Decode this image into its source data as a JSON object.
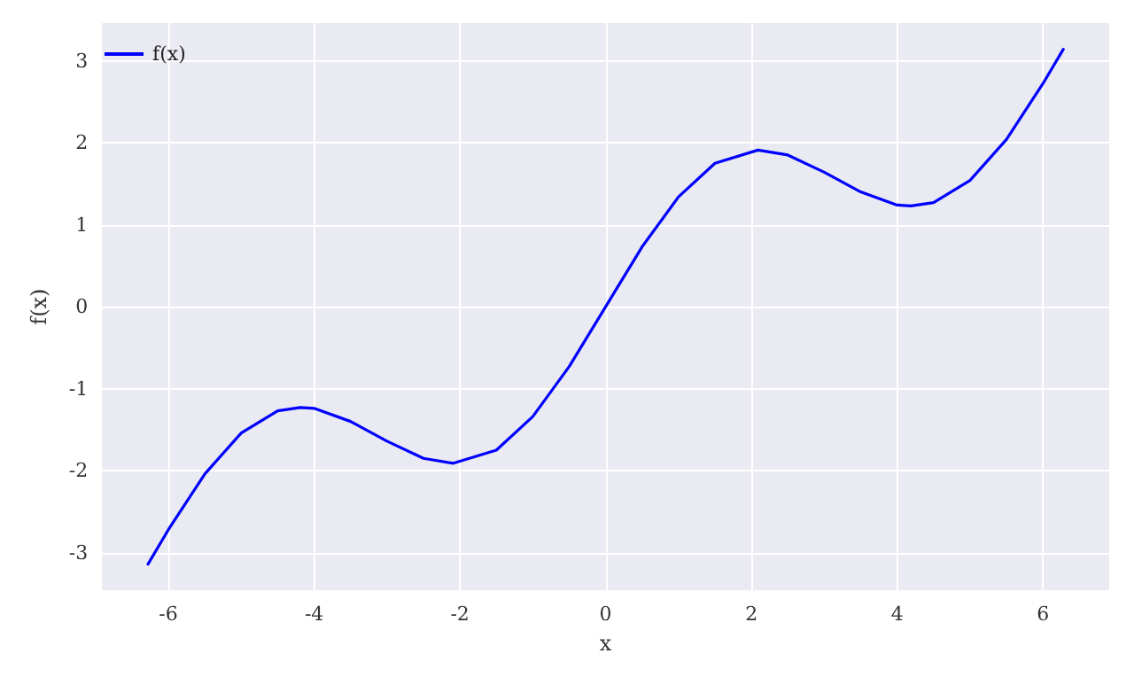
{
  "chart_data": {
    "type": "line",
    "xlabel": "x",
    "ylabel": "f(x)",
    "x": [
      -6.28,
      -6,
      -5.5,
      -5,
      -4.5,
      -4.19,
      -4,
      -3.5,
      -3,
      -2.5,
      -2.09,
      -1.5,
      -1,
      -0.5,
      0,
      0.5,
      1,
      1.5,
      2.09,
      2.5,
      3,
      3.5,
      4,
      4.19,
      4.5,
      5,
      5.5,
      6,
      6.28
    ],
    "series": [
      {
        "name": "f(x)",
        "color": "#0000ff",
        "values": [
          -3.14,
          -2.72,
          -2.04,
          -1.54,
          -1.27,
          -1.23,
          -1.24,
          -1.4,
          -1.64,
          -1.85,
          -1.91,
          -1.75,
          -1.34,
          -0.73,
          0,
          0.73,
          1.34,
          1.75,
          1.91,
          1.85,
          1.64,
          1.4,
          1.24,
          1.23,
          1.27,
          1.54,
          2.04,
          2.72,
          3.14
        ]
      }
    ],
    "xlim": [
      -6.91,
      6.91
    ],
    "xticks": [
      -6,
      -4,
      -2,
      0,
      2,
      4,
      6
    ],
    "ylim": [
      -3.46,
      3.46
    ],
    "yticks": [
      -3,
      -2,
      -1,
      0,
      1,
      2,
      3
    ],
    "grid": true,
    "legend": "top left",
    "marker": "none",
    "line_style": "solid"
  }
}
